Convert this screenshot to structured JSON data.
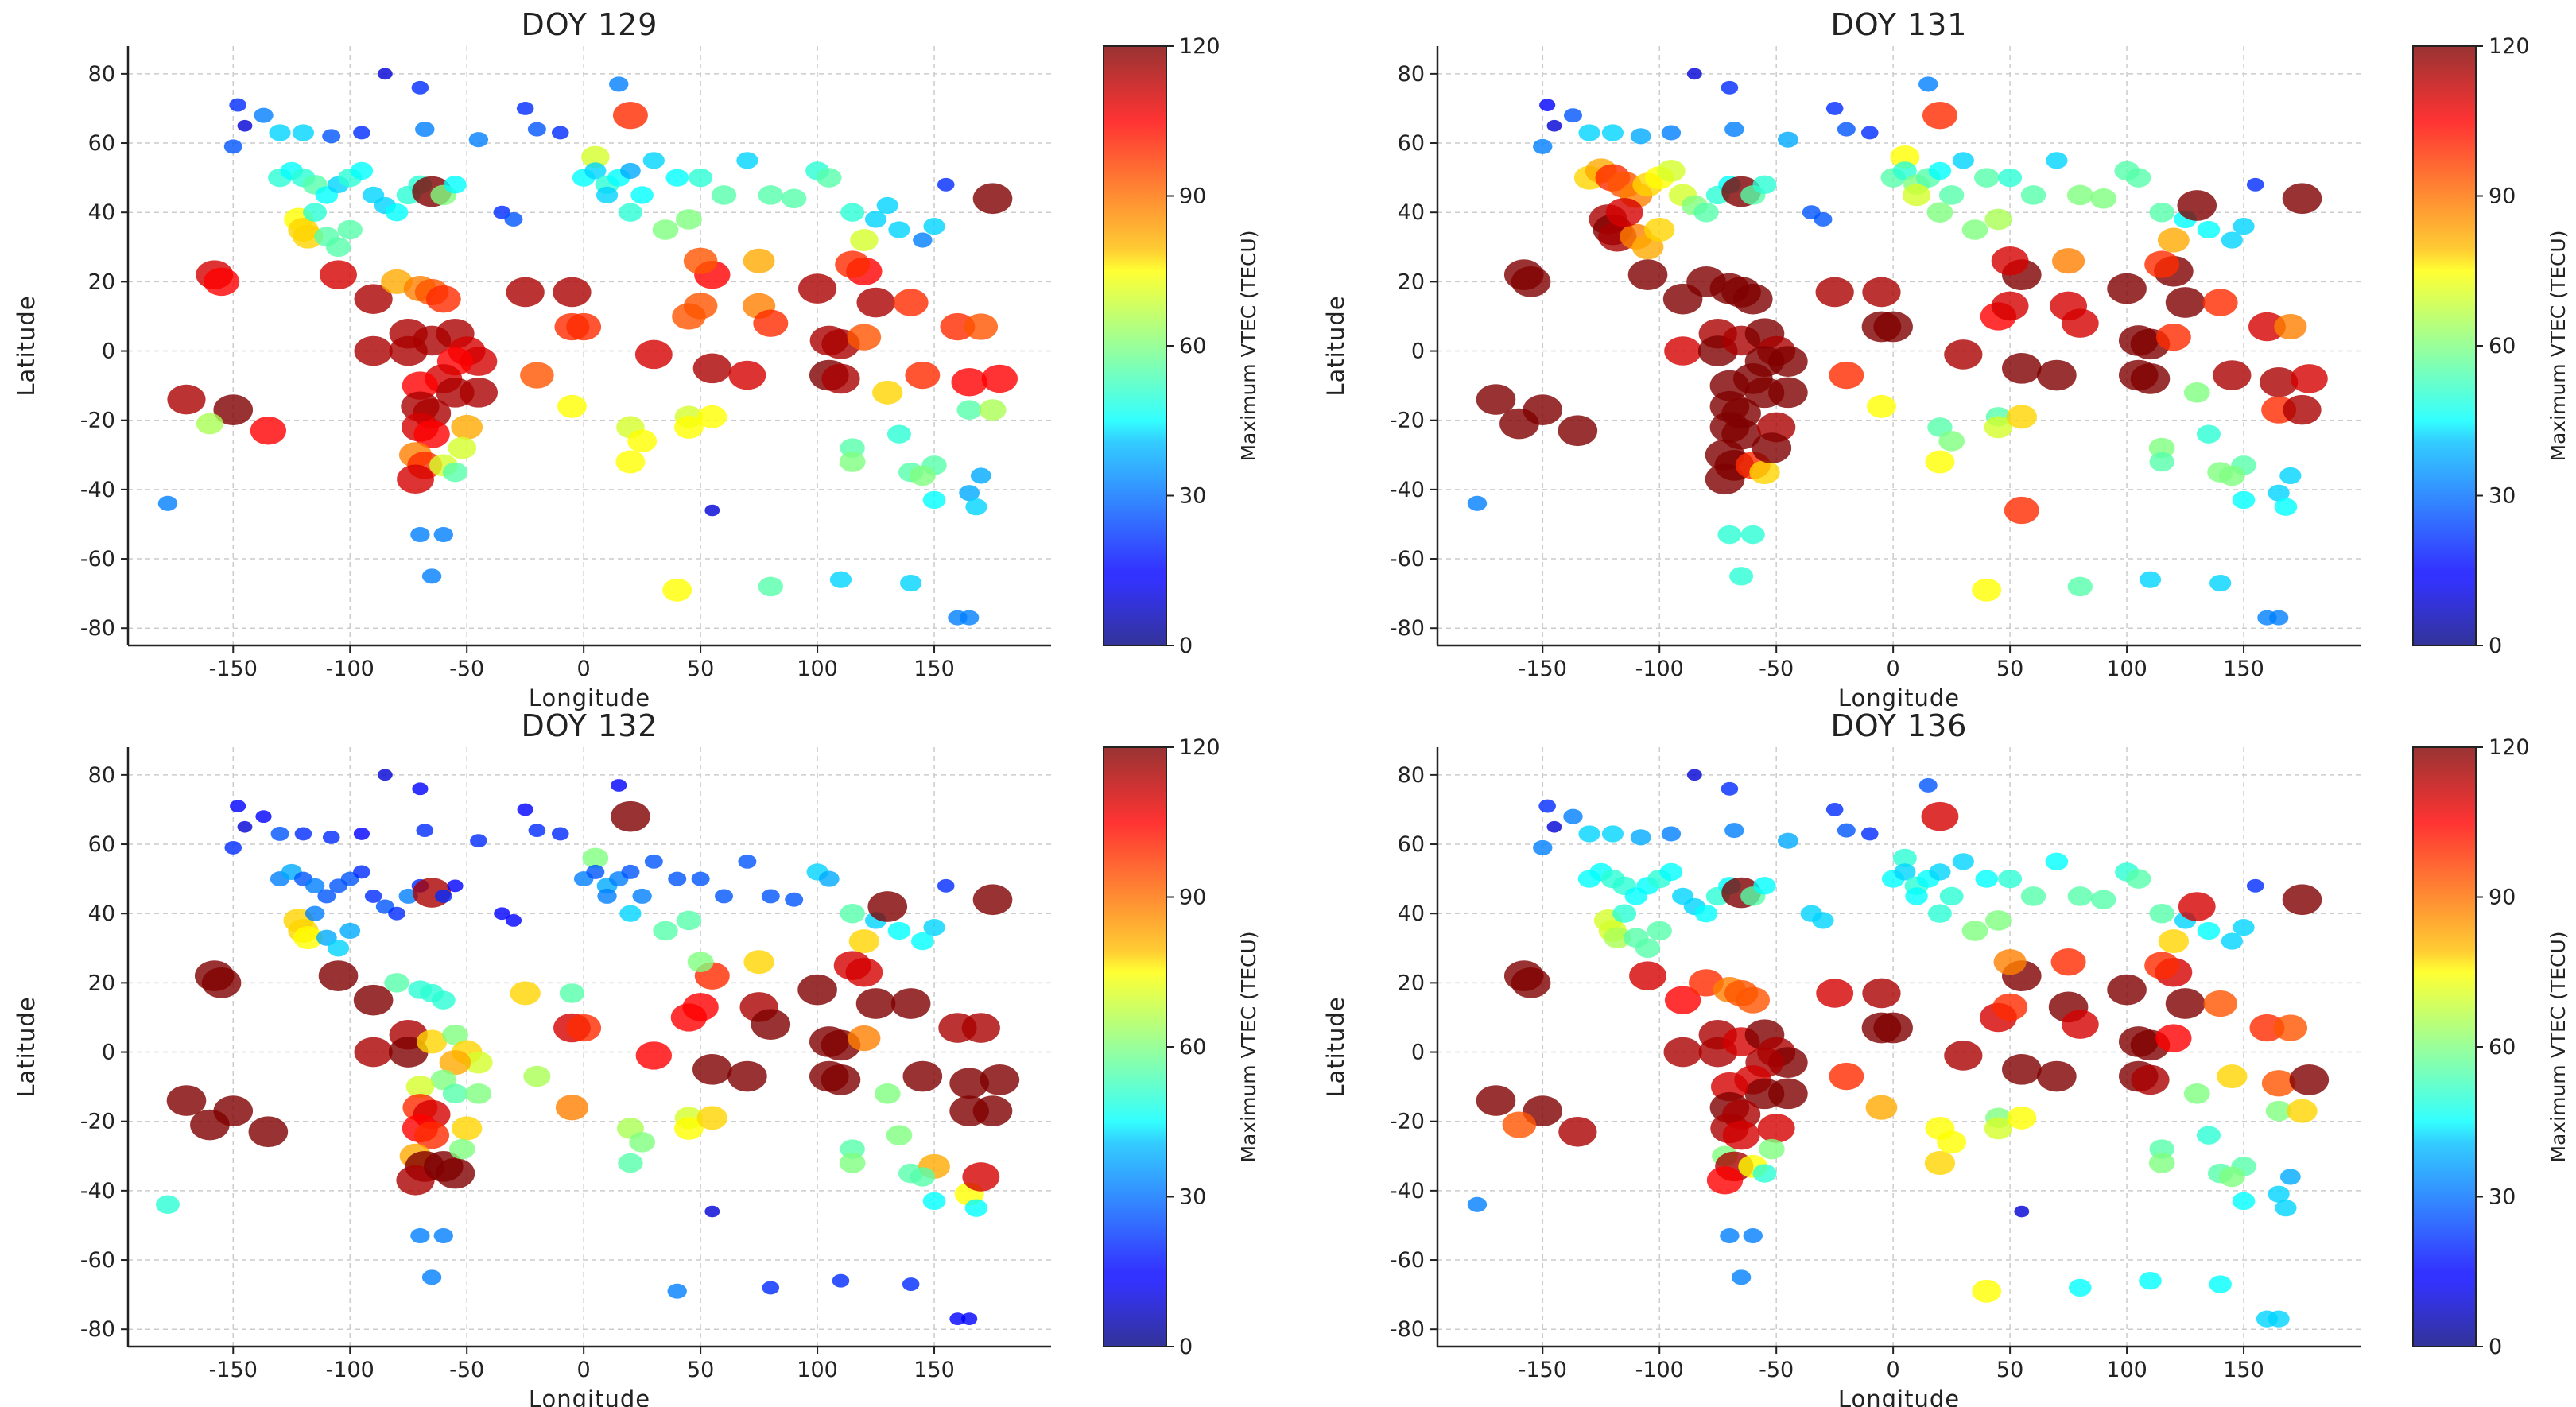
{
  "chart_data": {
    "type": "scatter",
    "xlabel": "Longitude",
    "ylabel": "Latitude",
    "colorbar_label": "Maximum VTEC (TECU)",
    "colormap": "jet",
    "xlim": [
      -195,
      200
    ],
    "ylim": [
      -85,
      88
    ],
    "clim": [
      0,
      120
    ],
    "grid": true,
    "xticks": [
      -150,
      -100,
      -50,
      0,
      50,
      100,
      150
    ],
    "yticks": [
      -80,
      -60,
      -40,
      -20,
      0,
      20,
      40,
      60,
      80
    ],
    "cticks": [
      0,
      30,
      60,
      90,
      120
    ],
    "stations_lon_lat": [
      [
        -148,
        71
      ],
      [
        -145,
        65
      ],
      [
        -150,
        59
      ],
      [
        -137,
        68
      ],
      [
        -130,
        63
      ],
      [
        -120,
        63
      ],
      [
        -108,
        62
      ],
      [
        -95,
        63
      ],
      [
        -85,
        80
      ],
      [
        -70,
        76
      ],
      [
        -68,
        64
      ],
      [
        -45,
        61
      ],
      [
        -25,
        70
      ],
      [
        -20,
        64
      ],
      [
        -10,
        63
      ],
      [
        15,
        77
      ],
      [
        20,
        68
      ],
      [
        5,
        56
      ],
      [
        -130,
        50
      ],
      [
        -125,
        52
      ],
      [
        -120,
        50
      ],
      [
        -115,
        48
      ],
      [
        -110,
        45
      ],
      [
        -105,
        48
      ],
      [
        -100,
        50
      ],
      [
        -95,
        52
      ],
      [
        -90,
        45
      ],
      [
        -85,
        42
      ],
      [
        -80,
        40
      ],
      [
        -75,
        45
      ],
      [
        -70,
        48
      ],
      [
        -65,
        46
      ],
      [
        -60,
        45
      ],
      [
        -55,
        48
      ],
      [
        -122,
        38
      ],
      [
        -120,
        35
      ],
      [
        -118,
        33
      ],
      [
        -110,
        33
      ],
      [
        -105,
        30
      ],
      [
        -100,
        35
      ],
      [
        -115,
        40
      ],
      [
        -35,
        40
      ],
      [
        -30,
        38
      ],
      [
        0,
        50
      ],
      [
        5,
        52
      ],
      [
        10,
        48
      ],
      [
        15,
        50
      ],
      [
        20,
        52
      ],
      [
        10,
        45
      ],
      [
        25,
        45
      ],
      [
        30,
        55
      ],
      [
        40,
        50
      ],
      [
        50,
        50
      ],
      [
        60,
        45
      ],
      [
        70,
        55
      ],
      [
        80,
        45
      ],
      [
        90,
        44
      ],
      [
        100,
        52
      ],
      [
        105,
        50
      ],
      [
        115,
        40
      ],
      [
        125,
        38
      ],
      [
        135,
        35
      ],
      [
        145,
        32
      ],
      [
        130,
        42
      ],
      [
        120,
        32
      ],
      [
        150,
        36
      ],
      [
        155,
        48
      ],
      [
        35,
        35
      ],
      [
        45,
        38
      ],
      [
        20,
        40
      ],
      [
        175,
        44
      ],
      [
        -158,
        22
      ],
      [
        -155,
        20
      ],
      [
        -105,
        22
      ],
      [
        -90,
        15
      ],
      [
        -80,
        20
      ],
      [
        -70,
        18
      ],
      [
        -65,
        17
      ],
      [
        -60,
        15
      ],
      [
        -25,
        17
      ],
      [
        -5,
        17
      ],
      [
        -90,
        0
      ],
      [
        -75,
        5
      ],
      [
        -75,
        0
      ],
      [
        -65,
        3
      ],
      [
        -55,
        5
      ],
      [
        -50,
        0
      ],
      [
        -45,
        -3
      ],
      [
        -55,
        -3
      ],
      [
        -60,
        -8
      ],
      [
        -55,
        -12
      ],
      [
        -45,
        -12
      ],
      [
        -70,
        -10
      ],
      [
        -70,
        -16
      ],
      [
        -65,
        -18
      ],
      [
        -70,
        -22
      ],
      [
        -65,
        -24
      ],
      [
        -72,
        -30
      ],
      [
        -68,
        -33
      ],
      [
        -72,
        -37
      ],
      [
        -60,
        -33
      ],
      [
        -55,
        -35
      ],
      [
        -50,
        -22
      ],
      [
        -52,
        -28
      ],
      [
        -70,
        -53
      ],
      [
        -60,
        -53
      ],
      [
        -65,
        -65
      ],
      [
        -170,
        -14
      ],
      [
        -150,
        -17
      ],
      [
        -135,
        -23
      ],
      [
        -160,
        -21
      ],
      [
        -178,
        -44
      ],
      [
        -5,
        7
      ],
      [
        0,
        7
      ],
      [
        30,
        -1
      ],
      [
        45,
        10
      ],
      [
        50,
        13
      ],
      [
        55,
        22
      ],
      [
        50,
        26
      ],
      [
        75,
        26
      ],
      [
        75,
        13
      ],
      [
        80,
        8
      ],
      [
        55,
        -5
      ],
      [
        70,
        -7
      ],
      [
        100,
        18
      ],
      [
        105,
        3
      ],
      [
        110,
        2
      ],
      [
        105,
        -7
      ],
      [
        110,
        -8
      ],
      [
        120,
        23
      ],
      [
        125,
        14
      ],
      [
        115,
        25
      ],
      [
        140,
        14
      ],
      [
        160,
        7
      ],
      [
        170,
        7
      ],
      [
        145,
        -7
      ],
      [
        165,
        -9
      ],
      [
        178,
        -8
      ],
      [
        120,
        4
      ],
      [
        130,
        -12
      ],
      [
        165,
        -17
      ],
      [
        175,
        -17
      ],
      [
        -5,
        -16
      ],
      [
        -20,
        -7
      ],
      [
        20,
        -22
      ],
      [
        20,
        -32
      ],
      [
        25,
        -26
      ],
      [
        45,
        -19
      ],
      [
        45,
        -22
      ],
      [
        55,
        -19
      ],
      [
        115,
        -28
      ],
      [
        115,
        -32
      ],
      [
        135,
        -24
      ],
      [
        140,
        -35
      ],
      [
        150,
        -33
      ],
      [
        145,
        -36
      ],
      [
        150,
        -43
      ],
      [
        165,
        -41
      ],
      [
        168,
        -45
      ],
      [
        170,
        -36
      ],
      [
        40,
        -69
      ],
      [
        80,
        -68
      ],
      [
        110,
        -66
      ],
      [
        140,
        -67
      ],
      [
        165,
        -77
      ],
      [
        160,
        -77
      ],
      [
        55,
        -46
      ]
    ],
    "panels": [
      {
        "title": "DOY 129",
        "vtec": [
          20,
          10,
          25,
          30,
          40,
          40,
          25,
          20,
          10,
          20,
          30,
          30,
          20,
          25,
          20,
          30,
          100,
          70,
          50,
          45,
          50,
          55,
          45,
          40,
          50,
          45,
          40,
          40,
          45,
          50,
          50,
          120,
          60,
          45,
          75,
          80,
          80,
          55,
          55,
          55,
          50,
          20,
          25,
          45,
          40,
          50,
          45,
          35,
          40,
          45,
          40,
          45,
          50,
          55,
          40,
          55,
          55,
          50,
          55,
          50,
          40,
          40,
          30,
          40,
          70,
          40,
          20,
          60,
          60,
          50,
          120,
          110,
          105,
          110,
          115,
          85,
          90,
          95,
          100,
          115,
          115,
          115,
          115,
          115,
          115,
          115,
          110,
          110,
          105,
          110,
          115,
          115,
          105,
          115,
          115,
          110,
          105,
          90,
          100,
          110,
          70,
          55,
          85,
          70,
          30,
          30,
          30,
          115,
          120,
          105,
          65,
          30,
          100,
          100,
          110,
          95,
          95,
          105,
          95,
          85,
          90,
          100,
          115,
          110,
          115,
          115,
          115,
          120,
          115,
          105,
          115,
          100,
          100,
          100,
          95,
          100,
          105,
          105,
          95,
          80,
          55,
          65,
          75,
          95,
          70,
          75,
          75,
          70,
          75,
          75,
          55,
          60,
          50,
          55,
          55,
          60,
          45,
          35,
          40,
          35,
          75,
          55,
          40,
          40,
          30,
          30,
          10
        ]
      },
      {
        "title": "DOY 131",
        "vtec": [
          15,
          10,
          30,
          25,
          40,
          40,
          35,
          30,
          10,
          20,
          30,
          35,
          20,
          25,
          20,
          30,
          100,
          75,
          80,
          85,
          100,
          95,
          90,
          80,
          75,
          70,
          70,
          60,
          55,
          50,
          45,
          120,
          55,
          50,
          115,
          120,
          115,
          90,
          85,
          80,
          110,
          25,
          25,
          55,
          50,
          60,
          55,
          45,
          70,
          55,
          40,
          55,
          50,
          55,
          40,
          60,
          60,
          55,
          55,
          55,
          45,
          45,
          40,
          120,
          85,
          40,
          20,
          60,
          65,
          60,
          120,
          120,
          120,
          120,
          120,
          120,
          120,
          120,
          120,
          115,
          115,
          110,
          115,
          120,
          115,
          120,
          115,
          120,
          120,
          120,
          120,
          120,
          120,
          120,
          120,
          120,
          120,
          120,
          120,
          120,
          100,
          80,
          115,
          120,
          50,
          50,
          50,
          120,
          120,
          120,
          120,
          30,
          120,
          120,
          115,
          105,
          110,
          120,
          110,
          90,
          110,
          110,
          120,
          120,
          120,
          120,
          120,
          120,
          120,
          120,
          120,
          100,
          100,
          110,
          90,
          115,
          115,
          110,
          100,
          60,
          100,
          115,
          75,
          100,
          55,
          75,
          60,
          55,
          70,
          80,
          60,
          55,
          50,
          60,
          55,
          60,
          45,
          40,
          45,
          40,
          75,
          55,
          40,
          40,
          30,
          30,
          100
        ]
      },
      {
        "title": "DOY 132",
        "vtec": [
          15,
          10,
          20,
          15,
          25,
          20,
          20,
          15,
          10,
          15,
          20,
          20,
          15,
          20,
          20,
          15,
          120,
          60,
          30,
          35,
          25,
          30,
          25,
          25,
          25,
          20,
          20,
          25,
          20,
          30,
          20,
          115,
          20,
          15,
          80,
          80,
          75,
          35,
          40,
          35,
          30,
          15,
          15,
          30,
          25,
          35,
          30,
          25,
          30,
          30,
          25,
          25,
          25,
          25,
          25,
          25,
          25,
          40,
          35,
          55,
          40,
          45,
          45,
          120,
          80,
          40,
          20,
          55,
          55,
          40,
          120,
          120,
          120,
          120,
          120,
          55,
          50,
          50,
          50,
          80,
          55,
          115,
          115,
          120,
          80,
          60,
          80,
          70,
          85,
          60,
          55,
          60,
          70,
          100,
          110,
          105,
          100,
          85,
          120,
          115,
          120,
          120,
          80,
          60,
          30,
          30,
          30,
          120,
          120,
          120,
          120,
          50,
          110,
          100,
          105,
          105,
          105,
          100,
          60,
          80,
          115,
          120,
          120,
          120,
          120,
          120,
          120,
          120,
          120,
          110,
          120,
          110,
          120,
          115,
          115,
          120,
          120,
          120,
          90,
          60,
          120,
          120,
          90,
          65,
          65,
          55,
          60,
          70,
          75,
          80,
          55,
          60,
          60,
          55,
          85,
          55,
          45,
          75,
          45,
          110,
          30,
          20,
          20,
          20,
          15,
          15,
          10
        ]
      },
      {
        "title": "DOY 136",
        "vtec": [
          20,
          10,
          30,
          30,
          40,
          40,
          35,
          30,
          10,
          20,
          30,
          35,
          20,
          25,
          20,
          25,
          110,
          50,
          45,
          45,
          50,
          50,
          45,
          45,
          50,
          45,
          40,
          40,
          45,
          50,
          45,
          120,
          55,
          45,
          70,
          70,
          65,
          55,
          55,
          55,
          50,
          40,
          40,
          45,
          40,
          50,
          45,
          40,
          45,
          50,
          40,
          45,
          50,
          55,
          45,
          55,
          55,
          50,
          55,
          55,
          40,
          45,
          40,
          110,
          80,
          40,
          20,
          60,
          60,
          50,
          120,
          120,
          120,
          110,
          105,
          100,
          90,
          95,
          95,
          110,
          115,
          115,
          115,
          115,
          110,
          120,
          115,
          120,
          115,
          110,
          120,
          120,
          110,
          120,
          115,
          115,
          110,
          60,
          115,
          105,
          75,
          50,
          110,
          60,
          30,
          30,
          30,
          120,
          120,
          115,
          95,
          30,
          120,
          120,
          115,
          110,
          100,
          120,
          90,
          100,
          120,
          110,
          120,
          120,
          120,
          120,
          120,
          120,
          115,
          110,
          120,
          100,
          95,
          100,
          95,
          80,
          95,
          120,
          105,
          60,
          60,
          80,
          85,
          100,
          75,
          80,
          75,
          60,
          70,
          75,
          55,
          60,
          50,
          55,
          55,
          60,
          45,
          40,
          40,
          35,
          75,
          45,
          45,
          45,
          40,
          40,
          10
        ]
      }
    ]
  }
}
